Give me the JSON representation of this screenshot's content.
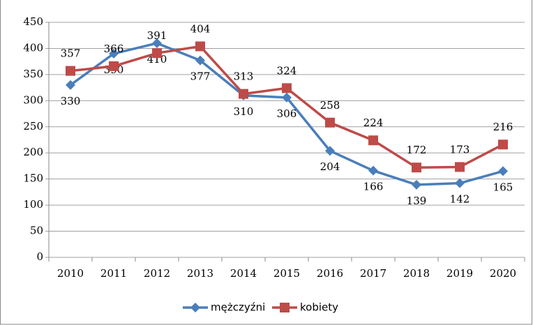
{
  "chart_data": {
    "type": "line",
    "categories": [
      "2010",
      "2011",
      "2012",
      "2013",
      "2014",
      "2015",
      "2016",
      "2017",
      "2018",
      "2019",
      "2020"
    ],
    "series": [
      {
        "name": "mężczyźni",
        "color": "#4a7ebb",
        "values": [
          330,
          390,
          410,
          377,
          310,
          306,
          204,
          166,
          139,
          142,
          165
        ]
      },
      {
        "name": "kobiety",
        "color": "#be4b48",
        "values": [
          357,
          366,
          391,
          404,
          313,
          324,
          258,
          224,
          172,
          173,
          216
        ]
      }
    ],
    "ylim": [
      0,
      450
    ],
    "yticks": [
      0,
      50,
      100,
      150,
      200,
      250,
      300,
      350,
      400,
      450
    ],
    "grid": true,
    "legend": "bottom"
  }
}
